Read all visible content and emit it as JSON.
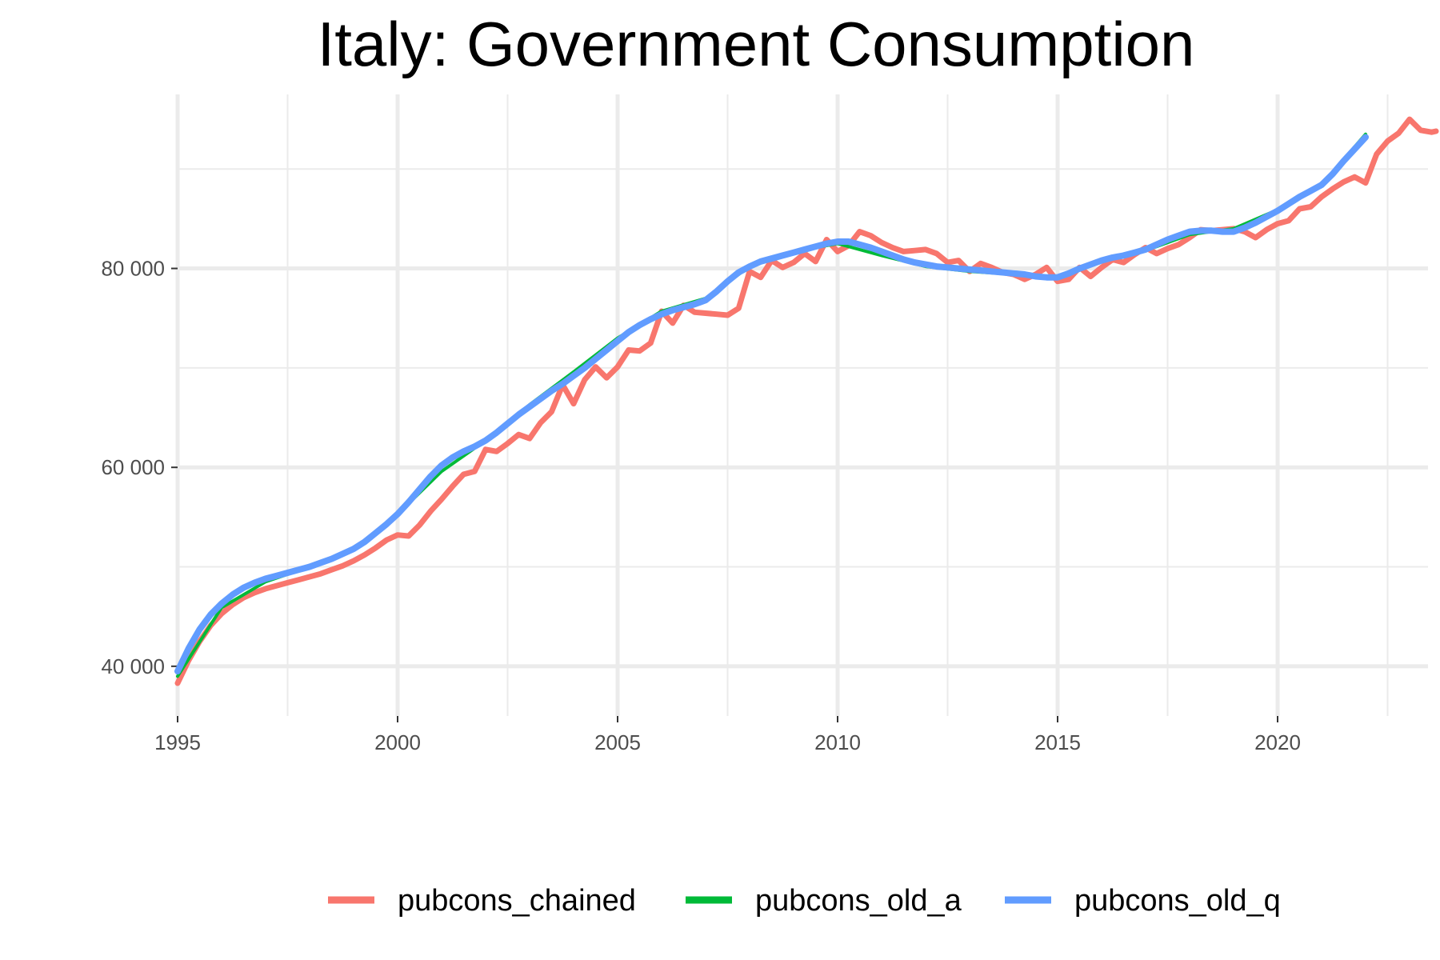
{
  "chart_data": {
    "type": "line",
    "title": "Italy: Government Consumption",
    "xlabel": "",
    "ylabel": "",
    "xlim": [
      1995,
      2023.6
    ],
    "ylim": [
      35000,
      97500
    ],
    "x_ticks": [
      1995,
      2000,
      2005,
      2010,
      2015,
      2020
    ],
    "y_ticks": [
      40000,
      60000,
      80000
    ],
    "y_tick_labels": [
      "40 000",
      "60 000",
      "80 000"
    ],
    "grid": true,
    "legend_position": "bottom",
    "series": [
      {
        "name": "pubcons_chained",
        "color": "#F8766D",
        "points": [
          [
            1995.0,
            38300
          ],
          [
            1995.25,
            40600
          ],
          [
            1995.5,
            42500
          ],
          [
            1995.75,
            44100
          ],
          [
            1996.0,
            45300
          ],
          [
            1996.25,
            46200
          ],
          [
            1996.5,
            46900
          ],
          [
            1996.75,
            47400
          ],
          [
            1997.0,
            47800
          ],
          [
            1997.25,
            48100
          ],
          [
            1997.5,
            48400
          ],
          [
            1997.75,
            48700
          ],
          [
            1998.0,
            49000
          ],
          [
            1998.25,
            49300
          ],
          [
            1998.5,
            49700
          ],
          [
            1998.75,
            50100
          ],
          [
            1999.0,
            50600
          ],
          [
            1999.25,
            51200
          ],
          [
            1999.5,
            51900
          ],
          [
            1999.75,
            52700
          ],
          [
            2000.0,
            53200
          ],
          [
            2000.25,
            53100
          ],
          [
            2000.5,
            54200
          ],
          [
            2000.75,
            55600
          ],
          [
            2001.0,
            56800
          ],
          [
            2001.25,
            58100
          ],
          [
            2001.5,
            59300
          ],
          [
            2001.75,
            59600
          ],
          [
            2002.0,
            61800
          ],
          [
            2002.25,
            61600
          ],
          [
            2002.5,
            62400
          ],
          [
            2002.75,
            63300
          ],
          [
            2003.0,
            62900
          ],
          [
            2003.25,
            64500
          ],
          [
            2003.5,
            65600
          ],
          [
            2003.75,
            68300
          ],
          [
            2004.0,
            66400
          ],
          [
            2004.25,
            68800
          ],
          [
            2004.5,
            70100
          ],
          [
            2004.75,
            69000
          ],
          [
            2005.0,
            70100
          ],
          [
            2005.25,
            71800
          ],
          [
            2005.5,
            71700
          ],
          [
            2005.75,
            72500
          ],
          [
            2006.0,
            75700
          ],
          [
            2006.25,
            74500
          ],
          [
            2006.5,
            76300
          ],
          [
            2006.75,
            75600
          ],
          [
            2007.0,
            75500
          ],
          [
            2007.25,
            75400
          ],
          [
            2007.5,
            75300
          ],
          [
            2007.75,
            76000
          ],
          [
            2008.0,
            79700
          ],
          [
            2008.25,
            79100
          ],
          [
            2008.5,
            80800
          ],
          [
            2008.75,
            80100
          ],
          [
            2009.0,
            80600
          ],
          [
            2009.25,
            81500
          ],
          [
            2009.5,
            80700
          ],
          [
            2009.75,
            82900
          ],
          [
            2010.0,
            81700
          ],
          [
            2010.25,
            82300
          ],
          [
            2010.5,
            83700
          ],
          [
            2010.75,
            83300
          ],
          [
            2011.0,
            82600
          ],
          [
            2011.25,
            82100
          ],
          [
            2011.5,
            81700
          ],
          [
            2011.75,
            81800
          ],
          [
            2012.0,
            81900
          ],
          [
            2012.25,
            81500
          ],
          [
            2012.5,
            80600
          ],
          [
            2012.75,
            80800
          ],
          [
            2013.0,
            79700
          ],
          [
            2013.25,
            80500
          ],
          [
            2013.5,
            80100
          ],
          [
            2013.75,
            79600
          ],
          [
            2014.0,
            79400
          ],
          [
            2014.25,
            78900
          ],
          [
            2014.5,
            79400
          ],
          [
            2014.75,
            80100
          ],
          [
            2015.0,
            78700
          ],
          [
            2015.25,
            78900
          ],
          [
            2015.5,
            80100
          ],
          [
            2015.75,
            79200
          ],
          [
            2016.0,
            80100
          ],
          [
            2016.25,
            80900
          ],
          [
            2016.5,
            80600
          ],
          [
            2016.75,
            81400
          ],
          [
            2017.0,
            82100
          ],
          [
            2017.25,
            81500
          ],
          [
            2017.5,
            82000
          ],
          [
            2017.75,
            82400
          ],
          [
            2018.0,
            83100
          ],
          [
            2018.25,
            83900
          ],
          [
            2018.5,
            83800
          ],
          [
            2018.75,
            83900
          ],
          [
            2019.0,
            84000
          ],
          [
            2019.25,
            83700
          ],
          [
            2019.5,
            83100
          ],
          [
            2019.75,
            83900
          ],
          [
            2020.0,
            84500
          ],
          [
            2020.25,
            84800
          ],
          [
            2020.5,
            86000
          ],
          [
            2020.75,
            86200
          ],
          [
            2021.0,
            87200
          ],
          [
            2021.25,
            88000
          ],
          [
            2021.5,
            88700
          ],
          [
            2021.75,
            89200
          ],
          [
            2022.0,
            88600
          ],
          [
            2022.25,
            91500
          ],
          [
            2022.5,
            92800
          ],
          [
            2022.75,
            93600
          ],
          [
            2023.0,
            95000
          ],
          [
            2023.25,
            93900
          ],
          [
            2023.5,
            93700
          ],
          [
            2023.6,
            93800
          ]
        ]
      },
      {
        "name": "pubcons_old_a",
        "color": "#00BA38",
        "points": [
          [
            1995.0,
            39000
          ],
          [
            1996.0,
            45900
          ],
          [
            1997.0,
            48500
          ],
          [
            1998.0,
            50000
          ],
          [
            1999.0,
            51800
          ],
          [
            2000.0,
            55300
          ],
          [
            2001.0,
            59600
          ],
          [
            2002.0,
            62700
          ],
          [
            2003.0,
            66300
          ],
          [
            2004.0,
            69600
          ],
          [
            2005.0,
            73000
          ],
          [
            2006.0,
            75700
          ],
          [
            2007.0,
            77000
          ],
          [
            2008.0,
            80200
          ],
          [
            2009.0,
            81700
          ],
          [
            2010.0,
            82500
          ],
          [
            2011.0,
            81300
          ],
          [
            2012.0,
            80200
          ],
          [
            2013.0,
            79700
          ],
          [
            2014.0,
            79400
          ],
          [
            2015.0,
            79100
          ],
          [
            2016.0,
            80700
          ],
          [
            2017.0,
            81800
          ],
          [
            2018.0,
            83400
          ],
          [
            2019.0,
            84000
          ],
          [
            2020.0,
            85900
          ],
          [
            2021.0,
            88400
          ],
          [
            2022.0,
            93500
          ]
        ]
      },
      {
        "name": "pubcons_old_q",
        "color": "#619CFF",
        "points": [
          [
            1995.0,
            39500
          ],
          [
            1995.25,
            41800
          ],
          [
            1995.5,
            43700
          ],
          [
            1995.75,
            45200
          ],
          [
            1996.0,
            46300
          ],
          [
            1996.25,
            47200
          ],
          [
            1996.5,
            47900
          ],
          [
            1996.75,
            48400
          ],
          [
            1997.0,
            48800
          ],
          [
            1997.25,
            49100
          ],
          [
            1997.5,
            49400
          ],
          [
            1997.75,
            49700
          ],
          [
            1998.0,
            50000
          ],
          [
            1998.25,
            50400
          ],
          [
            1998.5,
            50800
          ],
          [
            1998.75,
            51300
          ],
          [
            1999.0,
            51800
          ],
          [
            1999.25,
            52500
          ],
          [
            1999.5,
            53400
          ],
          [
            1999.75,
            54300
          ],
          [
            2000.0,
            55300
          ],
          [
            2000.25,
            56500
          ],
          [
            2000.5,
            57800
          ],
          [
            2000.75,
            59100
          ],
          [
            2001.0,
            60200
          ],
          [
            2001.25,
            61000
          ],
          [
            2001.5,
            61600
          ],
          [
            2001.75,
            62100
          ],
          [
            2002.0,
            62700
          ],
          [
            2002.25,
            63500
          ],
          [
            2002.5,
            64400
          ],
          [
            2002.75,
            65300
          ],
          [
            2003.0,
            66100
          ],
          [
            2003.25,
            66900
          ],
          [
            2003.5,
            67700
          ],
          [
            2003.75,
            68400
          ],
          [
            2004.0,
            69200
          ],
          [
            2004.25,
            70000
          ],
          [
            2004.5,
            70900
          ],
          [
            2004.75,
            71800
          ],
          [
            2005.0,
            72700
          ],
          [
            2005.25,
            73600
          ],
          [
            2005.5,
            74300
          ],
          [
            2005.75,
            74900
          ],
          [
            2006.0,
            75400
          ],
          [
            2006.25,
            75800
          ],
          [
            2006.5,
            76100
          ],
          [
            2006.75,
            76400
          ],
          [
            2007.0,
            76800
          ],
          [
            2007.25,
            77700
          ],
          [
            2007.5,
            78700
          ],
          [
            2007.75,
            79600
          ],
          [
            2008.0,
            80200
          ],
          [
            2008.25,
            80700
          ],
          [
            2008.5,
            81000
          ],
          [
            2008.75,
            81300
          ],
          [
            2009.0,
            81600
          ],
          [
            2009.25,
            81900
          ],
          [
            2009.5,
            82200
          ],
          [
            2009.75,
            82500
          ],
          [
            2010.0,
            82700
          ],
          [
            2010.25,
            82700
          ],
          [
            2010.5,
            82400
          ],
          [
            2010.75,
            82100
          ],
          [
            2011.0,
            81700
          ],
          [
            2011.25,
            81300
          ],
          [
            2011.5,
            80900
          ],
          [
            2011.75,
            80600
          ],
          [
            2012.0,
            80400
          ],
          [
            2012.25,
            80200
          ],
          [
            2012.5,
            80100
          ],
          [
            2012.75,
            80000
          ],
          [
            2013.0,
            79900
          ],
          [
            2013.25,
            79800
          ],
          [
            2013.5,
            79700
          ],
          [
            2013.75,
            79600
          ],
          [
            2014.0,
            79500
          ],
          [
            2014.25,
            79400
          ],
          [
            2014.5,
            79200
          ],
          [
            2014.75,
            79100
          ],
          [
            2015.0,
            79100
          ],
          [
            2015.25,
            79500
          ],
          [
            2015.5,
            80000
          ],
          [
            2015.75,
            80400
          ],
          [
            2016.0,
            80800
          ],
          [
            2016.25,
            81100
          ],
          [
            2016.5,
            81300
          ],
          [
            2016.75,
            81600
          ],
          [
            2017.0,
            81900
          ],
          [
            2017.25,
            82400
          ],
          [
            2017.5,
            82900
          ],
          [
            2017.75,
            83300
          ],
          [
            2018.0,
            83700
          ],
          [
            2018.25,
            83800
          ],
          [
            2018.5,
            83800
          ],
          [
            2018.75,
            83700
          ],
          [
            2019.0,
            83700
          ],
          [
            2019.25,
            84100
          ],
          [
            2019.5,
            84600
          ],
          [
            2019.75,
            85200
          ],
          [
            2020.0,
            85800
          ],
          [
            2020.25,
            86500
          ],
          [
            2020.5,
            87200
          ],
          [
            2020.75,
            87800
          ],
          [
            2021.0,
            88400
          ],
          [
            2021.25,
            89500
          ],
          [
            2021.5,
            90800
          ],
          [
            2021.75,
            92000
          ],
          [
            2022.0,
            93200
          ]
        ]
      }
    ]
  }
}
